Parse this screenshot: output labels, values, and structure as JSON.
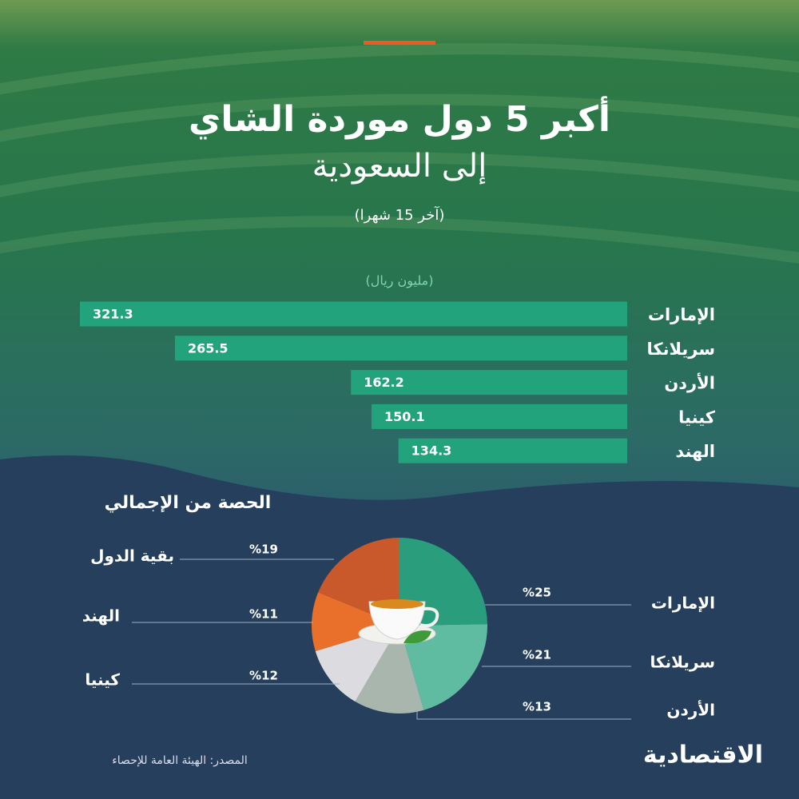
{
  "chart_data": [
    {
      "type": "bar",
      "title": "أكبر 5 دول موردة الشاي",
      "subtitle": "إلى السعودية",
      "note": "(آخر 15 شهرا)",
      "unit_label": "(مليون ريال)",
      "orientation": "horizontal",
      "categories": [
        "الإمارات",
        "سريلانكا",
        "الأردن",
        "كينيا",
        "الهند"
      ],
      "values": [
        321.3,
        265.5,
        162.2,
        150.1,
        134.3
      ],
      "color": "#22a37c"
    },
    {
      "type": "pie",
      "title": "الحصة من الإجمالي",
      "categories": [
        "الإمارات",
        "سريلانكا",
        "الأردن",
        "كينيا",
        "الهند",
        "بقية الدول"
      ],
      "values": [
        25,
        21,
        13,
        12,
        11,
        19
      ],
      "value_labels": [
        "%25",
        "%21",
        "%13",
        "%12",
        "%11",
        "%19"
      ],
      "colors": [
        "#2a9d7c",
        "#5fbca0",
        "#a9b6ad",
        "#dcdce0",
        "#e8702a",
        "#c9582b"
      ]
    }
  ],
  "source": "المصدر: الهيئة العامة للإحصاء",
  "logo": "الاقتصادية"
}
